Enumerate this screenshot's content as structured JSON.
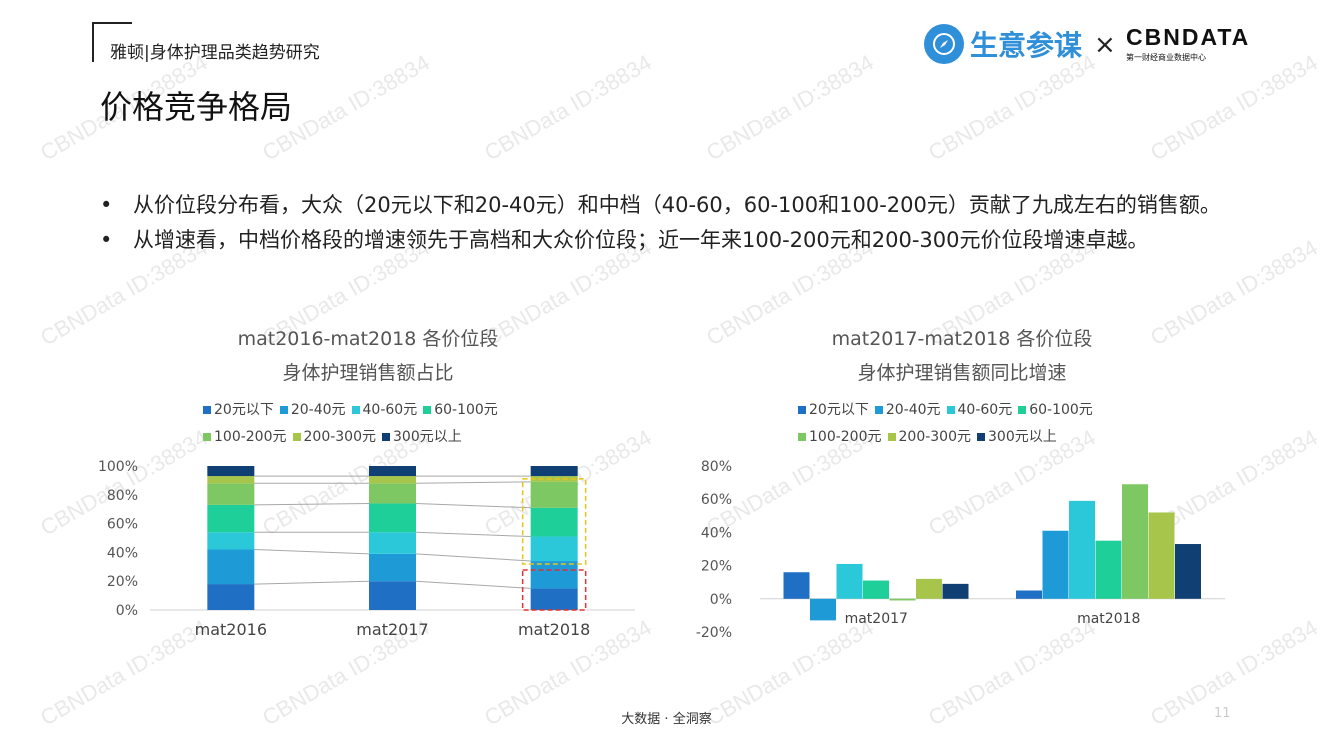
{
  "header": {
    "report_title": "雅顿|身体护理品类趋势研究",
    "page_title": "价格竞争格局",
    "logo_shengyi": "生意参谋",
    "logo_times": "×",
    "logo_cbn": "CBNDATA",
    "logo_cbn_sub": "第一财经商业数据中心"
  },
  "bullets": [
    "从价位段分布看，大众（20元以下和20-40元）和中档（40-60，60-100和100-200元）贡献了九成左右的销售额。",
    "从增速看，中档价格段的增速领先于高档和大众价位段；近一年来100-200元和200-300元价位段增速卓越。"
  ],
  "bullet_symbol": "•",
  "watermark": "CBNData ID:38834",
  "footer": "大数据 · 全洞察",
  "page_number": "11",
  "colors": [
    "#1f6fc5",
    "#1e9bd7",
    "#2bc8d9",
    "#1fcf9a",
    "#7dc862",
    "#a6c54a",
    "#0f3f73"
  ],
  "chart_data": [
    {
      "type": "bar",
      "stacked": true,
      "percent": true,
      "title_line1": "mat2016-mat2018 各价位段",
      "title_line2": "身体护理销售额占比",
      "categories": [
        "mat2016",
        "mat2017",
        "mat2018"
      ],
      "series": [
        {
          "name": "20元以下",
          "values": [
            18,
            20,
            15
          ]
        },
        {
          "name": "20-40元",
          "values": [
            24,
            19,
            19
          ]
        },
        {
          "name": "40-60元",
          "values": [
            12,
            15,
            17
          ]
        },
        {
          "name": "60-100元",
          "values": [
            19,
            20,
            20
          ]
        },
        {
          "name": "100-200元",
          "values": [
            15,
            14,
            18
          ]
        },
        {
          "name": "200-300元",
          "values": [
            5,
            5,
            4
          ]
        },
        {
          "name": "300元以上",
          "values": [
            7,
            7,
            7
          ]
        }
      ],
      "yticks": [
        "0%",
        "20%",
        "40%",
        "60%",
        "80%",
        "100%"
      ],
      "ylim": [
        0,
        100
      ],
      "legend": "top",
      "highlight_boxes": [
        "40-200元 mat2018",
        "0-40元 mat2018"
      ]
    },
    {
      "type": "bar",
      "title_line1": "mat2017-mat2018 各价位段",
      "title_line2": "身体护理销售额同比增速",
      "categories": [
        "mat2017",
        "mat2018"
      ],
      "series": [
        {
          "name": "20元以下",
          "values": [
            16,
            5
          ]
        },
        {
          "name": "20-40元",
          "values": [
            -13,
            41
          ]
        },
        {
          "name": "40-60元",
          "values": [
            21,
            59
          ]
        },
        {
          "name": "60-100元",
          "values": [
            11,
            35
          ]
        },
        {
          "name": "100-200元",
          "values": [
            -1,
            69
          ]
        },
        {
          "name": "200-300元",
          "values": [
            12,
            52
          ]
        },
        {
          "name": "300元以上",
          "values": [
            9,
            33
          ]
        }
      ],
      "yticks": [
        "-20%",
        "0%",
        "20%",
        "40%",
        "60%",
        "80%"
      ],
      "ylim": [
        -20,
        80
      ],
      "legend": "top"
    }
  ]
}
